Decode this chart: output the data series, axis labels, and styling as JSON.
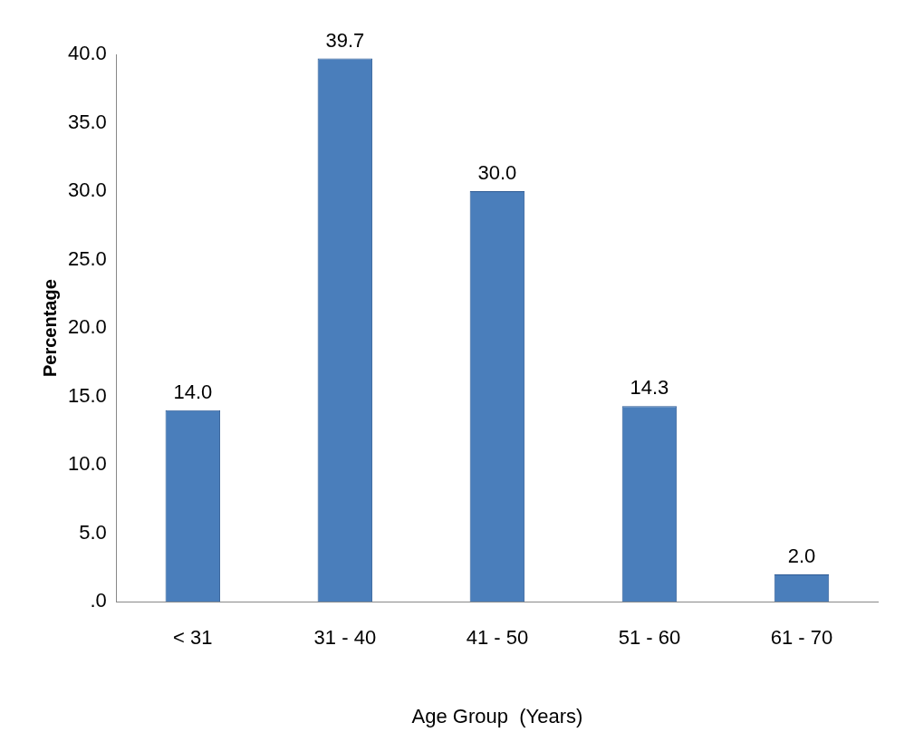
{
  "chart_data": {
    "type": "bar",
    "xlabel": "Age Group  (Years)",
    "ylabel": "Percentage",
    "categories": [
      "< 31",
      "31 - 40",
      "41 - 50",
      "51 - 60",
      "61 - 70"
    ],
    "values": [
      14.0,
      39.7,
      30.0,
      14.3,
      2.0
    ],
    "value_labels": [
      "14.0",
      "39.7",
      "30.0",
      "14.3",
      "2.0"
    ],
    "color": "#4a7ebb",
    "ylim": [
      0,
      40
    ],
    "yticks": [
      {
        "value": 0,
        "label": ".0"
      },
      {
        "value": 5,
        "label": "5.0"
      },
      {
        "value": 10,
        "label": "10.0"
      },
      {
        "value": 15,
        "label": "15.0"
      },
      {
        "value": 20,
        "label": "20.0"
      },
      {
        "value": 25,
        "label": "25.0"
      },
      {
        "value": 30,
        "label": "30.0"
      },
      {
        "value": 35,
        "label": "35.0"
      },
      {
        "value": 40,
        "label": "40.0"
      }
    ],
    "grid": false,
    "legend": false
  }
}
